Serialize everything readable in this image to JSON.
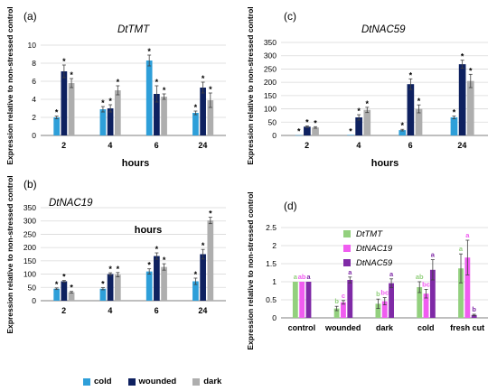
{
  "panels": [
    {
      "panel_label": "(a)",
      "gene_title": "DtTMT",
      "ylabel": "Expression relative to non-stressed control",
      "xlabel": "hours",
      "chart_data": {
        "type": "bar",
        "categories": [
          "2",
          "4",
          "6",
          "24"
        ],
        "ylim": [
          0,
          10
        ],
        "yticks": [
          0,
          2,
          4,
          6,
          8,
          10
        ],
        "series": [
          {
            "name": "cold",
            "color": "#2e9fd9",
            "values": [
              2.0,
              2.9,
              8.3,
              2.5
            ],
            "errors": [
              0.15,
              0.3,
              0.6,
              0.2
            ],
            "labels": [
              "*",
              "*",
              "*",
              "*"
            ]
          },
          {
            "name": "wounded",
            "color": "#0e2160",
            "values": [
              7.1,
              3.0,
              4.6,
              5.3
            ],
            "errors": [
              0.7,
              0.4,
              0.9,
              0.6
            ],
            "labels": [
              "*",
              "*",
              "*",
              "*"
            ]
          },
          {
            "name": "dark",
            "color": "#aeaeae",
            "values": [
              5.8,
              5.0,
              4.3,
              3.9
            ],
            "errors": [
              0.5,
              0.5,
              0.3,
              0.8
            ],
            "labels": [
              "*",
              "*",
              "*",
              "*"
            ]
          }
        ]
      }
    },
    {
      "panel_label": "(c)",
      "gene_title": "DtNAC59",
      "ylabel": "Expression relative to non-stressed control",
      "xlabel": "hours",
      "chart_data": {
        "type": "bar",
        "categories": [
          "2",
          "4",
          "6",
          "24"
        ],
        "ylim": [
          0,
          350
        ],
        "yticks": [
          0,
          50,
          100,
          150,
          200,
          250,
          300,
          350
        ],
        "series": [
          {
            "name": "cold",
            "color": "#2e9fd9",
            "values": [
              1,
              2,
              20,
              68
            ],
            "errors": [
              0,
              0,
              3,
              5
            ],
            "labels": [
              "*",
              "*",
              "*",
              "*"
            ]
          },
          {
            "name": "wounded",
            "color": "#0e2160",
            "values": [
              33,
              68,
              193,
              268
            ],
            "errors": [
              3,
              10,
              20,
              15
            ],
            "labels": [
              "*",
              "*",
              "*",
              "*"
            ]
          },
          {
            "name": "dark",
            "color": "#aeaeae",
            "values": [
              30,
              96,
              100,
              205
            ],
            "errors": [
              3,
              10,
              15,
              25
            ],
            "labels": [
              "*",
              "*",
              "*",
              "*"
            ]
          }
        ]
      }
    },
    {
      "panel_label": "(b)",
      "gene_title": "DtNAC19",
      "ylabel": "Expression relative to non-stressed control",
      "xlabel": "hours",
      "chart_data": {
        "type": "bar",
        "categories": [
          "2",
          "4",
          "6",
          "24"
        ],
        "ylim": [
          0,
          350
        ],
        "yticks": [
          0,
          50,
          100,
          150,
          200,
          250,
          300,
          350
        ],
        "series": [
          {
            "name": "cold",
            "color": "#2e9fd9",
            "values": [
              45,
              45,
              110,
              73
            ],
            "errors": [
              3,
              4,
              10,
              12
            ],
            "labels": [
              "*",
              "*",
              "*",
              "*"
            ]
          },
          {
            "name": "wounded",
            "color": "#0e2160",
            "values": [
              73,
              100,
              168,
              175
            ],
            "errors": [
              3,
              5,
              12,
              18
            ],
            "labels": [
              "*",
              "*",
              "*",
              "*"
            ]
          },
          {
            "name": "dark",
            "color": "#aeaeae",
            "values": [
              32,
              98,
              127,
              302
            ],
            "errors": [
              3,
              8,
              12,
              12
            ],
            "labels": [
              "*",
              "*",
              "*",
              "*"
            ]
          }
        ]
      }
    },
    {
      "panel_label": "(d)",
      "gene_title": "",
      "ylabel": "Expression relative to non-stressed control",
      "xlabel": "",
      "chart_data": {
        "type": "bar",
        "categories": [
          "control",
          "wounded",
          "dark",
          "cold",
          "fresh cut"
        ],
        "ylim": [
          0,
          2.5
        ],
        "yticks": [
          0,
          0.5,
          1,
          1.5,
          2,
          2.5
        ],
        "legend_position": "top-left",
        "series": [
          {
            "name": "DtTMT",
            "color": "#93d07e",
            "values": [
              1.0,
              0.26,
              0.39,
              0.85,
              1.37
            ],
            "errors": [
              0,
              0.06,
              0.13,
              0.15,
              0.4
            ],
            "labels": [
              "a",
              "b",
              "b",
              "ab",
              "a"
            ]
          },
          {
            "name": "DtNAC19",
            "color": "#f05cf0",
            "values": [
              1.0,
              0.43,
              0.46,
              0.67,
              1.67
            ],
            "errors": [
              0,
              0.05,
              0.1,
              0.12,
              0.48
            ],
            "labels": [
              "ab",
              "c",
              "bc",
              "bc",
              "a"
            ]
          },
          {
            "name": "DtNAC59",
            "color": "#7f2aa6",
            "values": [
              1.0,
              1.05,
              0.96,
              1.33,
              0.08
            ],
            "errors": [
              0,
              0.08,
              0.12,
              0.28,
              0.02
            ],
            "labels": [
              "a",
              "a",
              "a",
              "a",
              "b"
            ]
          }
        ]
      }
    }
  ],
  "legend": [
    {
      "label": "cold",
      "color": "#2e9fd9"
    },
    {
      "label": "wounded",
      "color": "#0e2160"
    },
    {
      "label": "dark",
      "color": "#aeaeae"
    }
  ]
}
